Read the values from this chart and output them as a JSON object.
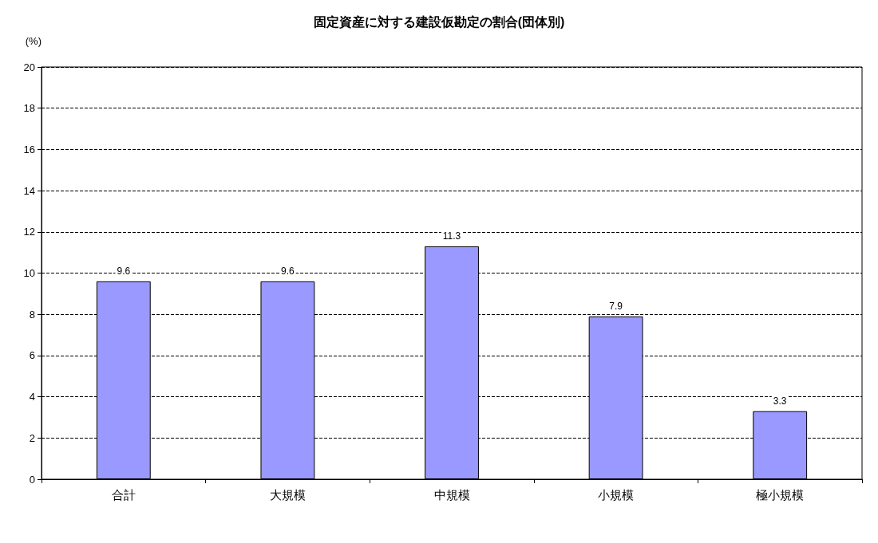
{
  "chart_data": {
    "type": "bar",
    "title": "固定資産に対する建設仮勘定の割合(団体別)",
    "ylabel": "(%)",
    "categories": [
      "合計",
      "大規模",
      "中規模",
      "小規模",
      "極小規模"
    ],
    "values": [
      9.6,
      9.6,
      11.3,
      7.9,
      3.3
    ],
    "color": "#9999ff",
    "ylim": [
      0,
      20
    ],
    "yticks": [
      0,
      2,
      4,
      6,
      8,
      10,
      12,
      14,
      16,
      18,
      20
    ],
    "grid": "y",
    "line_style": "dashed",
    "data_labels": true
  }
}
